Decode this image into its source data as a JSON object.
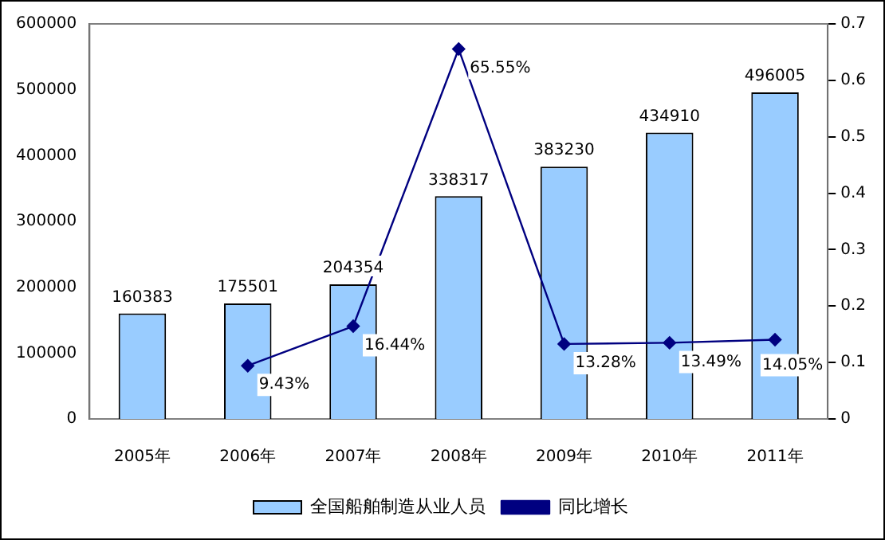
{
  "chart_data": {
    "type": "bar",
    "categories": [
      "2005年",
      "2006年",
      "2007年",
      "2008年",
      "2009年",
      "2010年",
      "2011年"
    ],
    "series": [
      {
        "name": "全国船舶制造从业人员",
        "color": "#99ccff",
        "values": [
          160383,
          175501,
          204354,
          338317,
          383230,
          434910,
          496005
        ],
        "value_labels": [
          "160383",
          "175501",
          "204354",
          "338317",
          "383230",
          "434910",
          "496005"
        ]
      },
      {
        "name": "同比增长",
        "type": "line",
        "axis": "y2",
        "color": "#000080",
        "values": [
          null,
          0.0943,
          0.1644,
          0.6555,
          0.1328,
          0.1349,
          0.1405
        ],
        "value_labels": [
          null,
          "9.43%",
          "16.44%",
          "65.55%",
          "13.28%",
          "13.49%",
          "14.05%"
        ]
      }
    ],
    "ylim": [
      0,
      600000
    ],
    "yticks": [
      0,
      100000,
      200000,
      300000,
      400000,
      500000,
      600000
    ],
    "y2lim": [
      0,
      0.7
    ],
    "y2ticks": [
      0,
      0.1,
      0.2,
      0.3,
      0.4,
      0.5,
      0.6,
      0.7
    ],
    "grid": false,
    "legend": "bottom",
    "marker": "diamond",
    "line_style": "solid"
  }
}
